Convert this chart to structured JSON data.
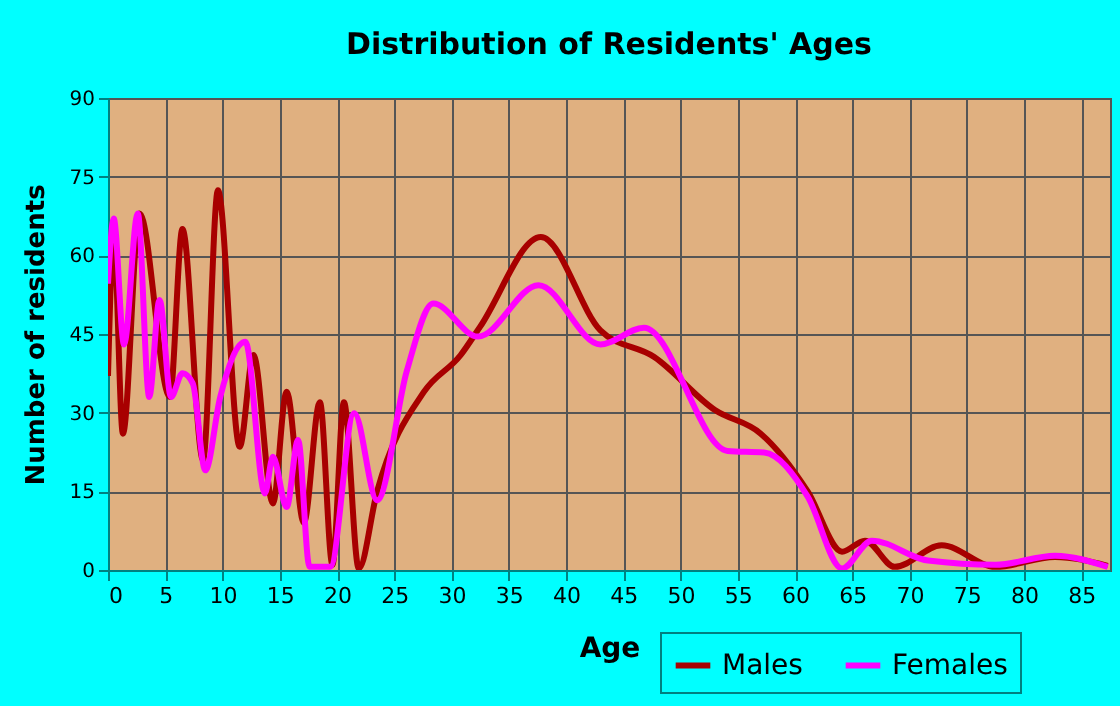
{
  "chart_data": {
    "type": "line",
    "title": "Distribution of Residents' Ages",
    "xlabel": "Age",
    "ylabel": "Number of residents",
    "xlim": [
      0,
      87.5
    ],
    "xticks": [
      0,
      5,
      10,
      15,
      20,
      25,
      30,
      35,
      40,
      45,
      50,
      55,
      60,
      65,
      70,
      75,
      80,
      85
    ],
    "ylim": [
      0,
      90
    ],
    "yticks": [
      0,
      15,
      30,
      45,
      60,
      75,
      90
    ],
    "grid": true,
    "legend": "bottom right",
    "series": [
      {
        "name": "Males",
        "color": "#a80000",
        "x": [
          0,
          0.5,
          1.3,
          2.75,
          5.4,
          6.5,
          8.3,
          9.6,
          11.5,
          12.7,
          14.4,
          15.6,
          17.1,
          18.5,
          19.6,
          20.6,
          21.9,
          23.5,
          27.6,
          30.8,
          32.5,
          37.8,
          43,
          47.7,
          53,
          57,
          61.1,
          64.1,
          66.1,
          68.7,
          72.8,
          77.5,
          82.7,
          87.3
        ],
        "values": [
          37,
          63.6,
          26,
          68,
          33,
          65,
          21,
          72.4,
          23.5,
          41,
          12.7,
          34,
          9,
          32,
          1,
          32,
          0.3,
          15,
          34,
          41,
          46.4,
          63.5,
          45.7,
          40.6,
          30.5,
          26,
          15,
          3.5,
          5.6,
          0.6,
          4.7,
          0.6,
          2.5,
          0.8
        ]
      },
      {
        "name": "Females",
        "color": "#ff00ff",
        "x": [
          0,
          0.5,
          1.4,
          2.6,
          3.6,
          4.5,
          5.5,
          6.5,
          7.4,
          8.5,
          9.8,
          12,
          13.7,
          14.4,
          15.6,
          16.6,
          17.6,
          19.4,
          21.5,
          23.5,
          26.1,
          28.4,
          32.3,
          37.6,
          43,
          46.8,
          54.1,
          57.3,
          61.1,
          64.1,
          66.7,
          71.6,
          77.5,
          82.7,
          87.3
        ],
        "values": [
          54.6,
          67,
          43,
          68,
          33,
          51.5,
          33,
          37.5,
          35.6,
          19,
          33,
          43.5,
          14.6,
          21.6,
          12,
          24.8,
          0.6,
          0.6,
          29.9,
          13.3,
          38,
          50.8,
          44.5,
          54.3,
          43,
          46.2,
          22.7,
          22.4,
          14,
          0.3,
          5.6,
          1.8,
          1,
          2.7,
          0.6
        ]
      }
    ]
  }
}
